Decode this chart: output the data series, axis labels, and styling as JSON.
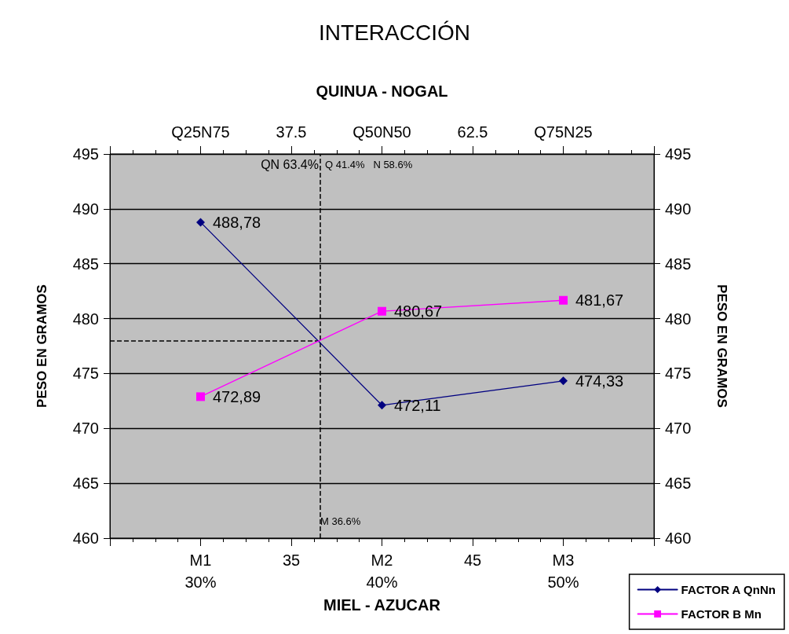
{
  "chart_data": {
    "type": "line",
    "title": "INTERACCIÓN",
    "x2label": "QUINUA - NOGAL",
    "xlabel": "MIEL - AZUCAR",
    "ylabel": "PESO EN GRAMOS",
    "y2label": "PESO EN GRAMOS",
    "x": [
      30,
      40,
      50
    ],
    "xlim": [
      25,
      55
    ],
    "xticks": [
      {
        "value": 30,
        "label": "M1\n30%"
      },
      35,
      {
        "value": 40,
        "label": "M2\n40%"
      },
      45,
      {
        "value": 50,
        "label": "M3\n50%"
      }
    ],
    "x2lim": [
      12.5,
      87.5
    ],
    "x2ticks": [
      {
        "value": 25,
        "label": "Q25N75"
      },
      37.5,
      {
        "value": 50,
        "label": "Q50N50"
      },
      62.5,
      {
        "value": 75,
        "label": "Q75N25"
      }
    ],
    "ylim": [
      460,
      495
    ],
    "yticks": [
      460,
      465,
      470,
      475,
      480,
      485,
      490,
      495
    ],
    "y2lim": [
      460,
      495
    ],
    "y2ticks": [
      460,
      465,
      470,
      475,
      480,
      485,
      490,
      495
    ],
    "series": [
      {
        "name": "FACTOR A QnNn",
        "color": "#000080",
        "marker": "diamond",
        "values": [
          488.78,
          472.11,
          474.33
        ],
        "value_labels": [
          "488,78",
          "472,11",
          "474,33"
        ]
      },
      {
        "name": "FACTOR B Mn",
        "color": "#ff00ff",
        "marker": "square",
        "values": [
          472.89,
          480.67,
          481.67
        ],
        "value_labels": [
          "472,89",
          "480,67",
          "481,67"
        ]
      }
    ],
    "ref_lines": [
      {
        "axis": "x",
        "value": 36.6,
        "label": "M 36.6%",
        "line_style": "dashed",
        "color": "#000000"
      },
      {
        "axis": "y",
        "value": 478,
        "line_style": "dashed",
        "color": "#000000"
      }
    ],
    "annotations": [
      {
        "text": "QN 63.4%",
        "x": 36.6,
        "y": 494
      },
      {
        "text": "Q 41.4%   N 58.6%",
        "x": 36.6,
        "y": 494
      }
    ],
    "grid": "y",
    "legend": "bottom right",
    "line_style": "solid"
  }
}
